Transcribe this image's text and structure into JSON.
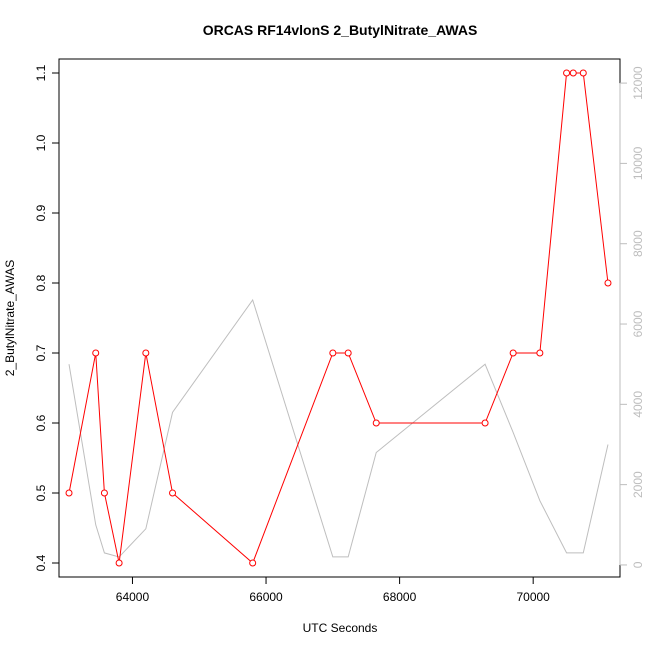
{
  "chart_data": {
    "type": "line",
    "title": "ORCAS RF14vlonS 2_ButylNitrate_AWAS",
    "xlabel": "UTC Seconds",
    "ylabel": "2_ButylNitrate_AWAS",
    "xlim": [
      62900,
      71300
    ],
    "ylim": [
      0.38,
      1.12
    ],
    "y2lim": [
      -300,
      12600
    ],
    "x_ticks": [
      64000,
      66000,
      68000,
      70000
    ],
    "y_ticks": [
      0.4,
      0.5,
      0.6,
      0.7,
      0.8,
      0.9,
      1.0,
      1.1
    ],
    "y_tick_labels": [
      "0.4",
      "0.5",
      "0.6",
      "0.7",
      "0.8",
      "0.9",
      "1.0",
      "1.1"
    ],
    "y2_ticks": [
      0,
      2000,
      4000,
      6000,
      8000,
      10000,
      12000
    ],
    "grid": false,
    "series": [
      {
        "axis": "left",
        "color": "#ff0000",
        "marker": "open-circle",
        "x": [
          63050,
          63450,
          63580,
          63800,
          64200,
          64600,
          65800,
          67000,
          67230,
          67650,
          69280,
          69700,
          70100,
          70500,
          70600,
          70750,
          71120
        ],
        "y": [
          0.5,
          0.7,
          0.5,
          0.4,
          0.7,
          0.5,
          0.4,
          0.7,
          0.7,
          0.6,
          0.6,
          0.7,
          0.7,
          1.1,
          1.1,
          1.1,
          0.8
        ]
      },
      {
        "axis": "right",
        "color": "#bebebe",
        "marker": "none",
        "x": [
          63050,
          63450,
          63580,
          63800,
          64200,
          64600,
          65800,
          67000,
          67230,
          67650,
          69280,
          69700,
          70100,
          70500,
          70600,
          70750,
          71120
        ],
        "y": [
          5000,
          1000,
          300,
          200,
          900,
          3800,
          6600,
          200,
          200,
          2800,
          5000,
          3300,
          1600,
          300,
          300,
          300,
          3000
        ]
      }
    ]
  }
}
